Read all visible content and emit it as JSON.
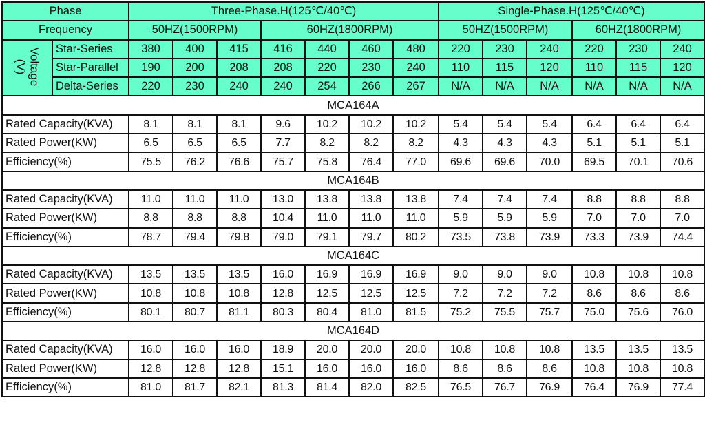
{
  "header": {
    "phase_label": "Phase",
    "frequency_label": "Frequency",
    "voltage_label": "Voltage\n(V)",
    "phases": [
      {
        "name": "Three-Phase.H(125℃/40℃)",
        "frequencies": [
          "50HZ(1500RPM)",
          "60HZ(1800RPM)"
        ]
      },
      {
        "name": "Single-Phase.H(125℃/40℃)",
        "frequencies": [
          "50HZ(1500RPM)",
          "60HZ(1800RPM)"
        ]
      }
    ],
    "voltage_rows": [
      {
        "label": "Star-Series",
        "values": [
          "380",
          "400",
          "415",
          "416",
          "440",
          "460",
          "480",
          "220",
          "230",
          "240",
          "220",
          "230",
          "240"
        ]
      },
      {
        "label": "Star-Parallel",
        "values": [
          "190",
          "200",
          "208",
          "208",
          "220",
          "230",
          "240",
          "110",
          "115",
          "120",
          "110",
          "115",
          "120"
        ]
      },
      {
        "label": "Delta-Series",
        "values": [
          "220",
          "230",
          "240",
          "240",
          "254",
          "266",
          "267",
          "N/A",
          "N/A",
          "N/A",
          "N/A",
          "N/A",
          "N/A"
        ]
      }
    ]
  },
  "header_color": "#66ffcc",
  "models": [
    {
      "name": "MCA164A",
      "rows": [
        {
          "label": "Rated Capacity(KVA)",
          "values": [
            "8.1",
            "8.1",
            "8.1",
            "9.6",
            "10.2",
            "10.2",
            "10.2",
            "5.4",
            "5.4",
            "5.4",
            "6.4",
            "6.4",
            "6.4"
          ]
        },
        {
          "label": "Rated Power(KW)",
          "values": [
            "6.5",
            "6.5",
            "6.5",
            "7.7",
            "8.2",
            "8.2",
            "8.2",
            "4.3",
            "4.3",
            "4.3",
            "5.1",
            "5.1",
            "5.1"
          ]
        },
        {
          "label": "Efficiency(%)",
          "values": [
            "75.5",
            "76.2",
            "76.6",
            "75.7",
            "75.8",
            "76.4",
            "77.0",
            "69.6",
            "69.6",
            "70.0",
            "69.5",
            "70.1",
            "70.6"
          ]
        }
      ]
    },
    {
      "name": "MCA164B",
      "rows": [
        {
          "label": "Rated Capacity(KVA)",
          "values": [
            "11.0",
            "11.0",
            "11.0",
            "13.0",
            "13.8",
            "13.8",
            "13.8",
            "7.4",
            "7.4",
            "7.4",
            "8.8",
            "8.8",
            "8.8"
          ]
        },
        {
          "label": "Rated Power(KW)",
          "values": [
            "8.8",
            "8.8",
            "8.8",
            "10.4",
            "11.0",
            "11.0",
            "11.0",
            "5.9",
            "5.9",
            "5.9",
            "7.0",
            "7.0",
            "7.0"
          ]
        },
        {
          "label": "Efficiency(%)",
          "values": [
            "78.7",
            "79.4",
            "79.8",
            "79.0",
            "79.1",
            "79.7",
            "80.2",
            "73.5",
            "73.8",
            "73.9",
            "73.3",
            "73.9",
            "74.4"
          ]
        }
      ]
    },
    {
      "name": "MCA164C",
      "rows": [
        {
          "label": "Rated Capacity(KVA)",
          "values": [
            "13.5",
            "13.5",
            "13.5",
            "16.0",
            "16.9",
            "16.9",
            "16.9",
            "9.0",
            "9.0",
            "9.0",
            "10.8",
            "10.8",
            "10.8"
          ]
        },
        {
          "label": "Rated Power(KW)",
          "values": [
            "10.8",
            "10.8",
            "10.8",
            "12.8",
            "12.5",
            "12.5",
            "12.5",
            "7.2",
            "7.2",
            "7.2",
            "8.6",
            "8.6",
            "8.6"
          ]
        },
        {
          "label": "Efficiency(%)",
          "values": [
            "80.1",
            "80.7",
            "81.1",
            "80.3",
            "80.4",
            "81.0",
            "81.5",
            "75.2",
            "75.5",
            "75.7",
            "75.0",
            "75.6",
            "76.0"
          ]
        }
      ]
    },
    {
      "name": "MCA164D",
      "rows": [
        {
          "label": "Rated Capacity(KVA)",
          "values": [
            "16.0",
            "16.0",
            "16.0",
            "18.9",
            "20.0",
            "20.0",
            "20.0",
            "10.8",
            "10.8",
            "10.8",
            "13.5",
            "13.5",
            "13.5"
          ]
        },
        {
          "label": "Rated Power(KW)",
          "values": [
            "12.8",
            "12.8",
            "12.8",
            "15.1",
            "16.0",
            "16.0",
            "16.0",
            "8.6",
            "8.6",
            "8.6",
            "10.8",
            "10.8",
            "10.8"
          ]
        },
        {
          "label": "Efficiency(%)",
          "values": [
            "81.0",
            "81.7",
            "82.1",
            "81.3",
            "81.4",
            "82.0",
            "82.5",
            "76.5",
            "76.7",
            "76.9",
            "76.4",
            "76.9",
            "77.4"
          ]
        }
      ]
    }
  ]
}
